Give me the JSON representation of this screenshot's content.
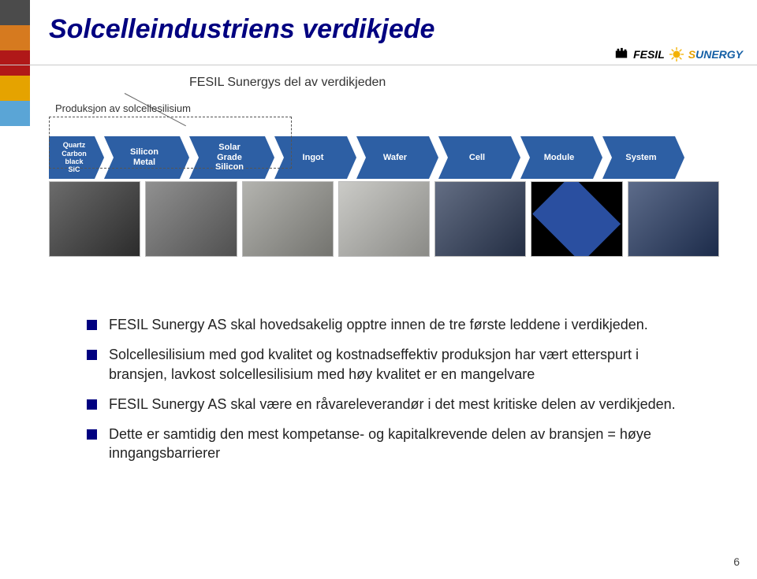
{
  "title": "Solcelleindustriens verdikjede",
  "subtitle": "FESIL Sunergys del av verdikjeden",
  "logos": {
    "fesil": "FESIL",
    "sunergy_a": "S",
    "sunergy_b": "UNERGY"
  },
  "left_stripe_colors": [
    "#4b4b4b",
    "#d67a1f",
    "#b01818",
    "#e5a300",
    "#5aa5d6"
  ],
  "production_label": "Produksjon av solcellesilisium",
  "chain": {
    "bg_color": "#2d5fa4",
    "stages": [
      {
        "label": "Quartz\nCarbon\nblack\nSiC"
      },
      {
        "label": "Silicon\nMetal"
      },
      {
        "label": "Solar\nGrade\nSilicon"
      },
      {
        "label": "Ingot"
      },
      {
        "label": "Wafer"
      },
      {
        "label": "Cell"
      },
      {
        "label": "Module"
      },
      {
        "label": "System"
      }
    ]
  },
  "image_placeholders": [
    {
      "bg": "#3a3a3a"
    },
    {
      "bg": "#6b6b6b"
    },
    {
      "bg": "#9a9a94"
    },
    {
      "bg": "#b9b9b4"
    },
    {
      "bg": "#2f3d5a"
    },
    {
      "bg": "#000000",
      "overlay": "#2a4fa0"
    },
    {
      "bg": "#263a63"
    }
  ],
  "bullets": [
    "FESIL Sunergy AS skal hovedsakelig opptre innen de tre første leddene i verdikjeden.",
    "Solcellesilisium med god kvalitet og kostnadseffektiv produksjon har vært etterspurt i bransjen, lavkost solcellesilisium med høy kvalitet er en mangelvare",
    "FESIL Sunergy AS skal være en råvareleverandør i det mest kritiske delen av verdikjeden.",
    "Dette er samtidig den mest kompetanse- og kapitalkrevende delen av bransjen = høye inngangsbarrierer"
  ],
  "page_number": "6"
}
